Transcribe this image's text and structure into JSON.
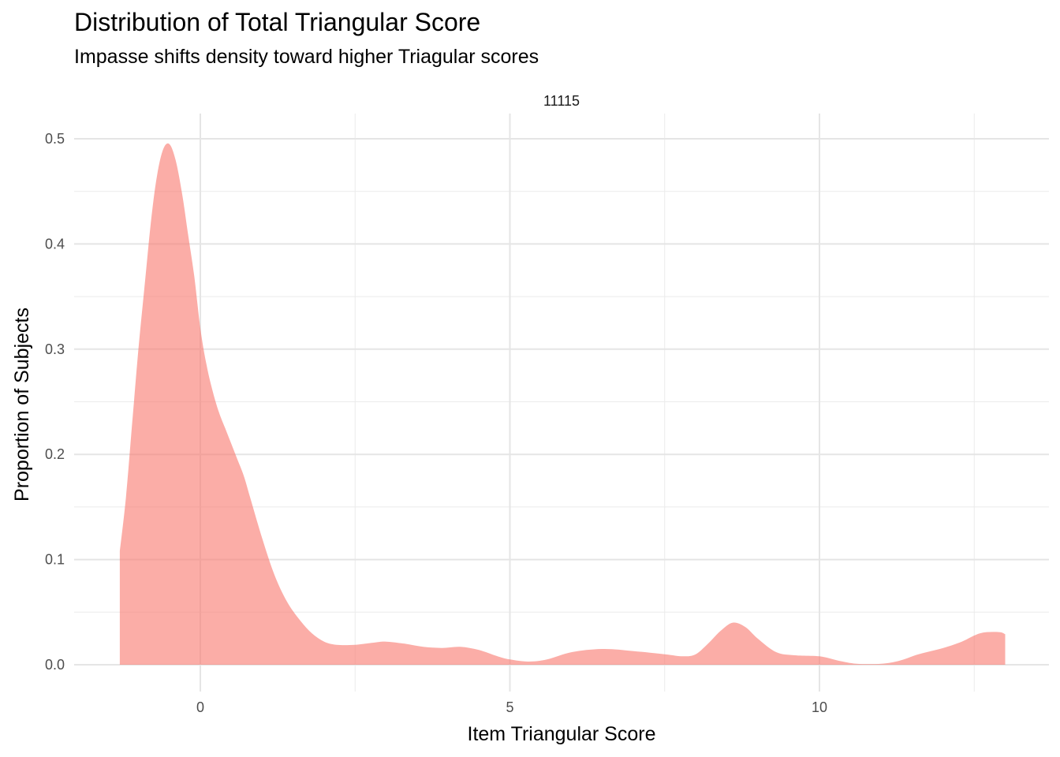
{
  "chart_data": {
    "type": "area",
    "title": "Distribution of Total Triangular Score",
    "subtitle": "Impasse shifts density toward higher Triagular scores",
    "facet_label": "11115",
    "xlabel": "Item Triangular Score",
    "ylabel": "Proportion of Subjects",
    "xlim": [
      -2.0,
      13.5
    ],
    "ylim": [
      -0.025,
      0.52
    ],
    "x_ticks": [
      0,
      5,
      10
    ],
    "y_ticks": [
      0.0,
      0.1,
      0.2,
      0.3,
      0.4,
      0.5
    ],
    "x_tick_labels": [
      "0",
      "5",
      "10"
    ],
    "y_tick_labels": [
      "0.0",
      "0.1",
      "0.2",
      "0.3",
      "0.4",
      "0.5"
    ],
    "grid": true,
    "fill_color": "#f8766d",
    "fill_opacity": 0.6,
    "series": [
      {
        "x": [
          -1.3,
          -1.2,
          -1.1,
          -1.0,
          -0.9,
          -0.8,
          -0.7,
          -0.6,
          -0.5,
          -0.4,
          -0.3,
          -0.2,
          -0.1,
          0.0,
          0.1,
          0.2,
          0.3,
          0.4,
          0.5,
          0.6,
          0.7,
          0.8,
          1.0,
          1.2,
          1.4,
          1.6,
          1.8,
          2.0,
          2.2,
          2.5,
          2.8,
          3.0,
          3.3,
          3.6,
          3.9,
          4.2,
          4.5,
          4.8,
          5.0,
          5.3,
          5.6,
          6.0,
          6.5,
          7.0,
          7.5,
          7.8,
          8.0,
          8.2,
          8.4,
          8.6,
          8.8,
          9.0,
          9.3,
          9.6,
          10.0,
          10.3,
          10.6,
          11.0,
          11.3,
          11.6,
          12.0,
          12.3,
          12.6,
          12.9,
          13.0
        ],
        "y": [
          0.108,
          0.16,
          0.23,
          0.3,
          0.36,
          0.42,
          0.465,
          0.49,
          0.495,
          0.48,
          0.45,
          0.41,
          0.37,
          0.32,
          0.285,
          0.26,
          0.24,
          0.225,
          0.21,
          0.195,
          0.18,
          0.16,
          0.12,
          0.085,
          0.06,
          0.043,
          0.03,
          0.022,
          0.019,
          0.019,
          0.021,
          0.022,
          0.02,
          0.017,
          0.016,
          0.017,
          0.014,
          0.008,
          0.005,
          0.003,
          0.005,
          0.012,
          0.015,
          0.013,
          0.01,
          0.008,
          0.01,
          0.02,
          0.032,
          0.04,
          0.036,
          0.025,
          0.012,
          0.009,
          0.008,
          0.004,
          0.001,
          0.001,
          0.004,
          0.01,
          0.016,
          0.022,
          0.03,
          0.031,
          0.029
        ]
      }
    ]
  }
}
